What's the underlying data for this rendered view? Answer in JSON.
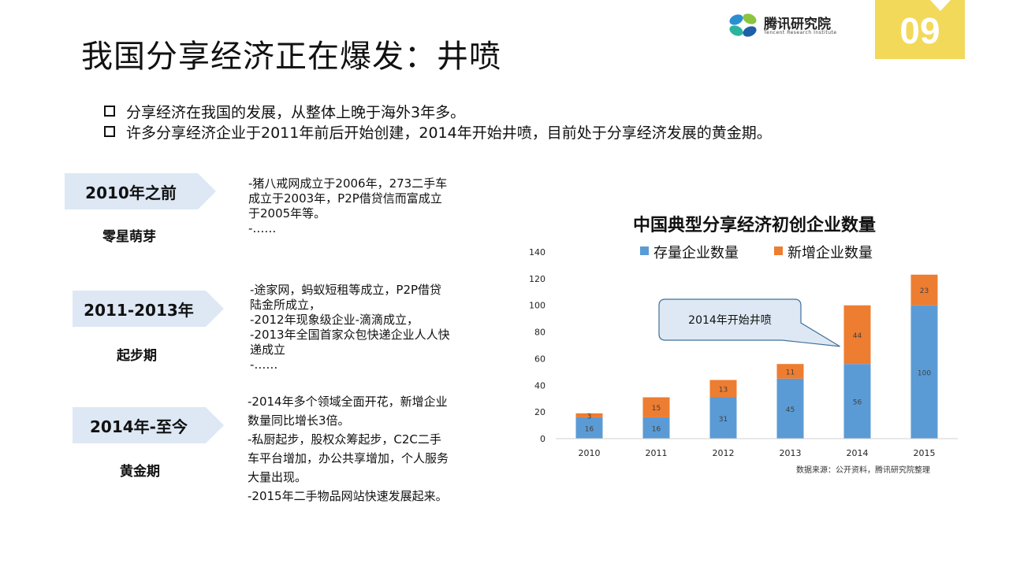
{
  "header": {
    "title": "我国分享经济正在爆发：井喷",
    "logo_name": "腾讯研究院",
    "logo_sub": "Tencent Research Institute",
    "page_number": "09"
  },
  "bullets": [
    "分享经济在我国的发展，从整体上晚于海外3年多。",
    "许多分享经济企业于2011年前后开始创建，2014年开始井喷，目前处于分享经济发展的黄金期。"
  ],
  "stages": [
    {
      "period": "2010年之前",
      "name": "零星萌芽",
      "lines": [
        "-猪八戒网成立于2006年，273二手车",
        "成立于2003年，P2P借贷信而富成立",
        "于2005年等。",
        "-……"
      ]
    },
    {
      "period": "2011-2013年",
      "name": "起步期",
      "lines": [
        "-途家网，蚂蚁短租等成立，P2P借贷",
        "陆金所成立，",
        "-2012年现象级企业-滴滴成立，",
        "-2013年全国首家众包快递企业人人快",
        "递成立",
        "-……"
      ]
    },
    {
      "period": "2014年-至今",
      "name": "黄金期",
      "lines": [
        "-2014年多个领域全面开花，新增企业",
        "数量同比增长3倍。",
        "-私厨起步，股权众筹起步，C2C二手",
        "车平台增加，办公共享增加，个人服务",
        "大量出现。",
        "-2015年二手物品网站快速发展起来。"
      ]
    }
  ],
  "chart_data": {
    "type": "bar",
    "stacked": true,
    "title": "中国典型分享经济初创企业数量",
    "categories": [
      "2010",
      "2011",
      "2012",
      "2013",
      "2014",
      "2015"
    ],
    "series": [
      {
        "name": "存量企业数量",
        "color": "#5b9bd5",
        "values": [
          16,
          16,
          31,
          45,
          56,
          100
        ]
      },
      {
        "name": "新增企业数量",
        "color": "#ed7d31",
        "values": [
          3,
          15,
          13,
          11,
          44,
          23
        ]
      }
    ],
    "ylim": [
      0,
      140
    ],
    "yticks": [
      0,
      20,
      40,
      60,
      80,
      100,
      120,
      140
    ],
    "legend": "top",
    "grid": false,
    "callout": {
      "text": "2014年开始井喷",
      "category": "2014"
    },
    "source": "数据来源：公开资料，腾讯研究院整理"
  }
}
